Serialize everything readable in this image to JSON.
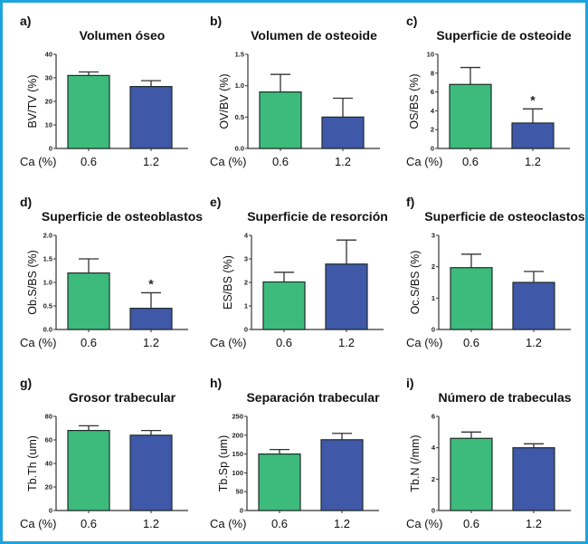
{
  "figure": {
    "border_color": "#1fa3dc",
    "bar_colors": [
      "#3dbb7c",
      "#3f58a8"
    ]
  },
  "chart_data": [
    {
      "panel": "a)",
      "type": "bar",
      "title": "Volumen óseo",
      "xlabel": "Ca (%)",
      "ylabel": "BV/TV (%)",
      "categories": [
        "0.6",
        "1.2"
      ],
      "values": [
        31,
        26.3
      ],
      "error_upper": [
        32.5,
        28.8
      ],
      "ylim": [
        0,
        40
      ],
      "yticks": [
        0,
        10,
        20,
        30,
        40
      ],
      "ytick_labels": [
        "0",
        "10",
        "20",
        "30",
        "40"
      ],
      "significance": [
        "",
        ""
      ]
    },
    {
      "panel": "b)",
      "type": "bar",
      "title": "Volumen de osteoide",
      "xlabel": "Ca (%)",
      "ylabel": "OV/BV (%)",
      "categories": [
        "0.6",
        "1.2"
      ],
      "values": [
        0.9,
        0.5
      ],
      "error_upper": [
        1.18,
        0.8
      ],
      "ylim": [
        0,
        1.5
      ],
      "yticks": [
        0,
        0.5,
        1.0,
        1.5
      ],
      "ytick_labels": [
        "0.0",
        "0.5",
        "1.0",
        "1.5"
      ],
      "significance": [
        "",
        ""
      ]
    },
    {
      "panel": "c)",
      "type": "bar",
      "title": "Superficie de osteoide",
      "xlabel": "Ca (%)",
      "ylabel": "OS/BS (%)",
      "categories": [
        "0.6",
        "1.2"
      ],
      "values": [
        6.8,
        2.7
      ],
      "error_upper": [
        8.6,
        4.2
      ],
      "ylim": [
        0,
        10
      ],
      "yticks": [
        0,
        2,
        4,
        6,
        8,
        10
      ],
      "ytick_labels": [
        "0",
        "2",
        "4",
        "6",
        "8",
        "10"
      ],
      "significance": [
        "",
        "*"
      ]
    },
    {
      "panel": "d)",
      "type": "bar",
      "title": "Superficie de osteoblastos",
      "xlabel": "Ca (%)",
      "ylabel": "Ob.S/BS (%)",
      "categories": [
        "0.6",
        "1.2"
      ],
      "values": [
        1.2,
        0.45
      ],
      "error_upper": [
        1.5,
        0.78
      ],
      "ylim": [
        0,
        2.0
      ],
      "yticks": [
        0,
        0.5,
        1.0,
        1.5,
        2.0
      ],
      "ytick_labels": [
        "0.0",
        "0.5",
        "1.0",
        "1.5",
        "2.0"
      ],
      "significance": [
        "",
        "*"
      ]
    },
    {
      "panel": "e)",
      "type": "bar",
      "title": "Superficie de resorción",
      "xlabel": "Ca (%)",
      "ylabel": "ES/BS (%)",
      "categories": [
        "0.6",
        "1.2"
      ],
      "values": [
        2.02,
        2.78
      ],
      "error_upper": [
        2.43,
        3.8
      ],
      "ylim": [
        0,
        4
      ],
      "yticks": [
        0,
        1,
        2,
        3,
        4
      ],
      "ytick_labels": [
        "0",
        "1",
        "2",
        "3",
        "4"
      ],
      "significance": [
        "",
        ""
      ]
    },
    {
      "panel": "f)",
      "type": "bar",
      "title": "Superficie de osteoclastos",
      "xlabel": "Ca (%)",
      "ylabel": "Oc.S/BS (%)",
      "categories": [
        "0.6",
        "1.2"
      ],
      "values": [
        1.97,
        1.5
      ],
      "error_upper": [
        2.4,
        1.85
      ],
      "ylim": [
        0,
        3
      ],
      "yticks": [
        0,
        1,
        2,
        3
      ],
      "ytick_labels": [
        "0",
        "1",
        "2",
        "3"
      ],
      "significance": [
        "",
        ""
      ]
    },
    {
      "panel": "g)",
      "type": "bar",
      "title": "Grosor trabecular",
      "xlabel": "Ca (%)",
      "ylabel": "Tb.Th (um)",
      "categories": [
        "0.6",
        "1.2"
      ],
      "values": [
        68,
        64
      ],
      "error_upper": [
        72,
        68
      ],
      "ylim": [
        0,
        80
      ],
      "yticks": [
        0,
        20,
        40,
        60,
        80
      ],
      "ytick_labels": [
        "0",
        "20",
        "40",
        "60",
        "80"
      ],
      "significance": [
        "",
        ""
      ]
    },
    {
      "panel": "h)",
      "type": "bar",
      "title": "Separación trabecular",
      "xlabel": "Ca (%)",
      "ylabel": "Tb.Sp (um)",
      "categories": [
        "0.6",
        "1.2"
      ],
      "values": [
        150,
        188
      ],
      "error_upper": [
        162,
        205
      ],
      "ylim": [
        0,
        250
      ],
      "yticks": [
        0,
        50,
        100,
        150,
        200,
        250
      ],
      "ytick_labels": [
        "0",
        "50",
        "100",
        "150",
        "200",
        "250"
      ],
      "significance": [
        "",
        ""
      ]
    },
    {
      "panel": "i)",
      "type": "bar",
      "title": "Número de trabeculas",
      "xlabel": "Ca (%)",
      "ylabel": "Tb.N (/mm)",
      "categories": [
        "0.6",
        "1.2"
      ],
      "values": [
        4.6,
        4.0
      ],
      "error_upper": [
        5.0,
        4.25
      ],
      "ylim": [
        0,
        6
      ],
      "yticks": [
        0,
        2,
        4,
        6
      ],
      "ytick_labels": [
        "0",
        "2",
        "4",
        "6"
      ],
      "significance": [
        "",
        ""
      ]
    }
  ]
}
